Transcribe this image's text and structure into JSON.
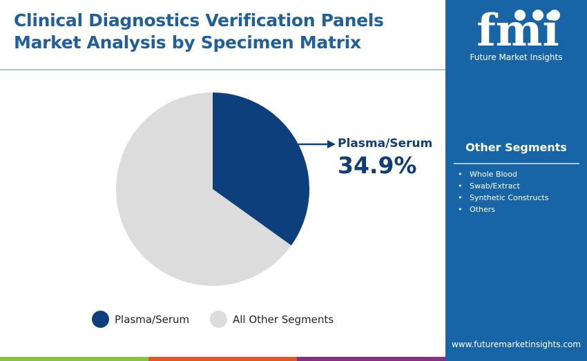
{
  "title_lines": [
    "Clinical Diagnostics Verification Panels",
    "Market Analysis by Specimen Matrix"
  ],
  "brand": {
    "logo_text": "fmi",
    "name": "Future Market Insights",
    "url": "www.futuremarketinsights.com"
  },
  "other_segments": {
    "title": "Other Segments",
    "items": [
      "Whole Blood",
      "Swab/Extract",
      "Synthetic Constructs",
      "Others"
    ]
  },
  "colors": {
    "plasma": "#0d3f7c",
    "others": "#dcdcdc",
    "panel": "#1765a7",
    "title": "#1f5f9b",
    "bar_green": "#8bc043",
    "bar_orange": "#e2562a",
    "bar_purple": "#862f87"
  },
  "chart_data": {
    "type": "pie",
    "slices": [
      {
        "name": "Plasma/Serum",
        "value": 34.9,
        "color": "#0d3f7c"
      },
      {
        "name": "All Other Segments",
        "value": 65.1,
        "color": "#dcdcdc"
      }
    ],
    "start_angle": "top, clockwise",
    "annotation": {
      "label": "Plasma/Serum",
      "value": "34.9%"
    },
    "legend": [
      "Plasma/Serum",
      "All Other Segments"
    ],
    "legend_placement": "bottom"
  }
}
